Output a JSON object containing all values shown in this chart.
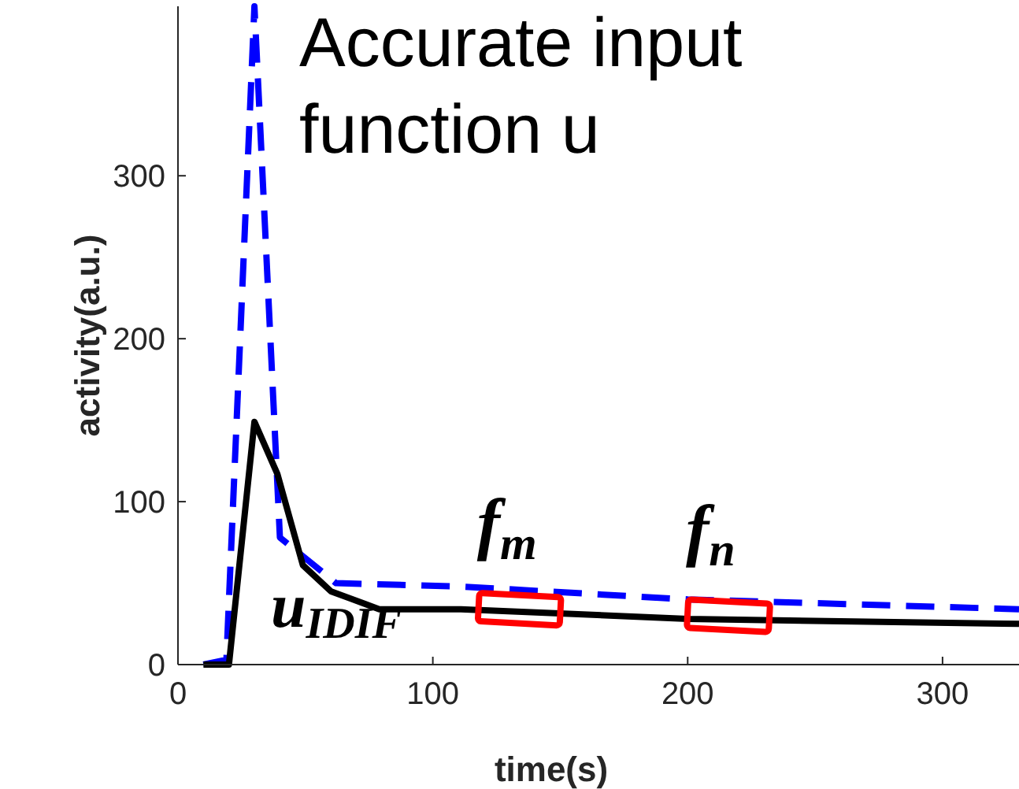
{
  "chart_data": {
    "type": "line",
    "xlabel": "time(s)",
    "ylabel": "activity(a.u.)",
    "xlim": [
      0,
      330
    ],
    "ylim": [
      0,
      404
    ],
    "xticks": [
      0,
      100,
      200,
      300
    ],
    "yticks": [
      0,
      100,
      200,
      300
    ],
    "grid": false,
    "series": [
      {
        "name": "Accurate input function u",
        "color": "#0000ff",
        "line_style": "dashed",
        "x": [
          10,
          19,
          30,
          40,
          62,
          110,
          200,
          330
        ],
        "values": [
          0,
          3,
          404,
          78,
          50,
          48,
          40,
          34
        ]
      },
      {
        "name": "u$_{IDIF}$",
        "color": "#000000",
        "line_style": "solid",
        "x": [
          10,
          20,
          30,
          39,
          49,
          60,
          79,
          111,
          200,
          330
        ],
        "values": [
          0,
          0,
          149,
          117,
          61,
          45,
          34,
          34,
          28,
          25
        ]
      }
    ],
    "annotations": [
      {
        "text": "f$_{m}$",
        "x": 134,
        "y": 34
      },
      {
        "text": "f$_{n}$",
        "x": 216,
        "y": 30
      }
    ]
  }
}
